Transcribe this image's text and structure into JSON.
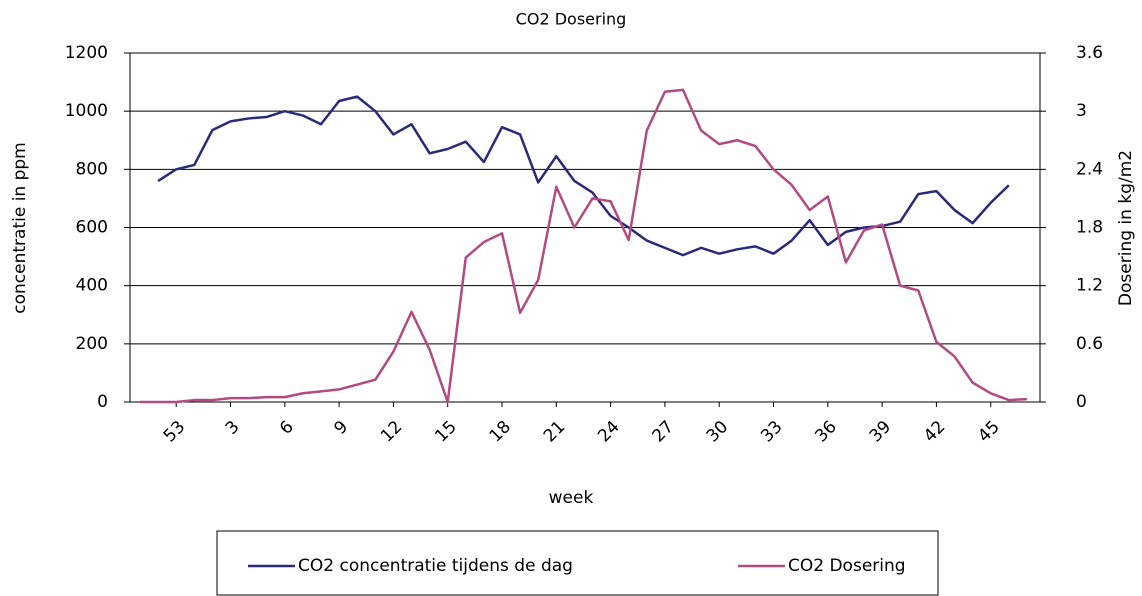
{
  "chart_data": {
    "type": "line",
    "title": "CO2 Dosering",
    "x_label": "week",
    "y_label": "concentratie in ppm",
    "y2_label": "Dosering in kg/m2",
    "categories": [
      null,
      null,
      "53",
      null,
      null,
      "3",
      null,
      null,
      "6",
      null,
      null,
      "9",
      null,
      null,
      "12",
      null,
      null,
      "15",
      null,
      null,
      "18",
      null,
      null,
      "21",
      null,
      null,
      "24",
      null,
      null,
      "27",
      null,
      null,
      "30",
      null,
      null,
      "33",
      null,
      null,
      "36",
      null,
      null,
      "39",
      null,
      null,
      "42",
      null,
      null,
      "45",
      null,
      null
    ],
    "series": [
      {
        "name": "CO2 concentratie tijdens de dag",
        "color": "#2b2a7a",
        "axis": "y",
        "values": [
          null,
          760,
          800,
          815,
          935,
          965,
          975,
          980,
          1000,
          985,
          955,
          1035,
          1050,
          1000,
          920,
          955,
          855,
          870,
          895,
          825,
          945,
          920,
          755,
          845,
          760,
          720,
          640,
          600,
          555,
          530,
          505,
          530,
          510,
          525,
          535,
          510,
          555,
          625,
          540,
          585,
          600,
          605,
          620,
          715,
          725,
          660,
          615,
          685,
          745,
          null
        ]
      },
      {
        "name": "CO2 Dosering",
        "color": "#b24a84",
        "axis": "y2",
        "values": [
          0,
          0,
          0,
          0.02,
          0.02,
          0.04,
          0.04,
          0.05,
          0.05,
          0.09,
          0.11,
          0.13,
          0.18,
          0.23,
          0.52,
          0.93,
          0.54,
          0,
          1.49,
          1.65,
          1.74,
          0.92,
          1.26,
          2.22,
          1.8,
          2.1,
          2.07,
          1.67,
          2.8,
          3.2,
          3.22,
          2.8,
          2.66,
          2.7,
          2.64,
          2.4,
          2.24,
          1.98,
          2.12,
          1.44,
          1.77,
          1.83,
          1.2,
          1.15,
          0.62,
          0.47,
          0.2,
          0.09,
          0.02,
          0.03
        ]
      }
    ],
    "ylim": [
      0,
      1200
    ],
    "yticks": [
      0,
      200,
      400,
      600,
      800,
      1000,
      1200
    ],
    "y2lim": [
      0,
      3.6
    ],
    "y2ticks": [
      0,
      0.6,
      1.2,
      1.8,
      2.4,
      3,
      3.6
    ],
    "grid": true,
    "legend": "bottom"
  }
}
